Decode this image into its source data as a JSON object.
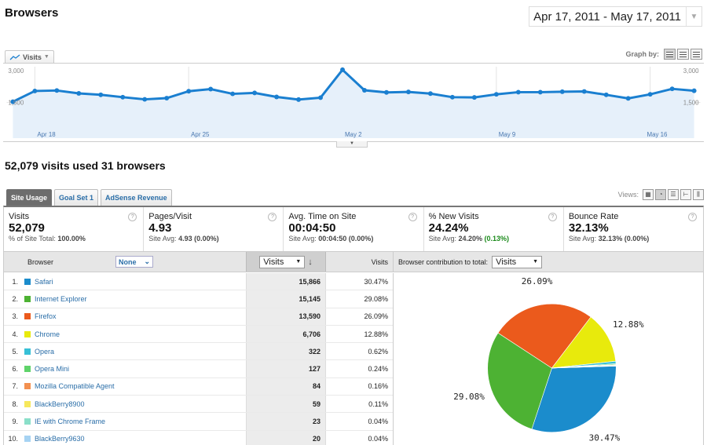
{
  "header": {
    "title": "Browsers",
    "date_range": "Apr 17, 2011 - May 17, 2011"
  },
  "graph": {
    "metric_label": "Visits",
    "graph_by_label": "Graph by:",
    "y_ticks": [
      "3,000",
      "1,500"
    ],
    "x_labels": [
      "Apr 18",
      "Apr 25",
      "May 2",
      "May 9",
      "May 16"
    ],
    "accent": "#1a7fd0"
  },
  "summary": {
    "text": "52,079 visits used 31 browsers"
  },
  "tabs": [
    {
      "label": "Site Usage",
      "active": true
    },
    {
      "label": "Goal Set 1",
      "active": false
    },
    {
      "label": "AdSense Revenue",
      "active": false
    }
  ],
  "views_label": "Views:",
  "scorecards": [
    {
      "label": "Visits",
      "value": "52,079",
      "sub_prefix": "% of Site Total: ",
      "sub_value": "100.00%",
      "sub_delta": ""
    },
    {
      "label": "Pages/Visit",
      "value": "4.93",
      "sub_prefix": "Site Avg: ",
      "sub_value": "4.93",
      "sub_delta": " (0.00%)"
    },
    {
      "label": "Avg. Time on Site",
      "value": "00:04:50",
      "sub_prefix": "Site Avg: ",
      "sub_value": "00:04:50",
      "sub_delta": " (0.00%)"
    },
    {
      "label": "% New Visits",
      "value": "24.24%",
      "sub_prefix": "Site Avg: ",
      "sub_value": "24.20%",
      "sub_delta": " (0.13%)"
    },
    {
      "label": "Bounce Rate",
      "value": "32.13%",
      "sub_prefix": "Site Avg: ",
      "sub_value": "32.13%",
      "sub_delta": " (0.00%)"
    }
  ],
  "table": {
    "col_browser": "Browser",
    "segment_value": "None",
    "sort_metric": "Visits",
    "col_visits": "Visits",
    "contrib_label": "Browser contribution to total:",
    "contrib_metric": "Visits",
    "rows": [
      {
        "num": "1.",
        "browser": "Safari",
        "visits": "15,866",
        "pct": "30.47%",
        "color": "#1b8ccc"
      },
      {
        "num": "2.",
        "browser": "Internet Explorer",
        "visits": "15,145",
        "pct": "29.08%",
        "color": "#4db233"
      },
      {
        "num": "3.",
        "browser": "Firefox",
        "visits": "13,590",
        "pct": "26.09%",
        "color": "#eb5a1c"
      },
      {
        "num": "4.",
        "browser": "Chrome",
        "visits": "6,706",
        "pct": "12.88%",
        "color": "#e8ea0c"
      },
      {
        "num": "5.",
        "browser": "Opera",
        "visits": "322",
        "pct": "0.62%",
        "color": "#37c0d6"
      },
      {
        "num": "6.",
        "browser": "Opera Mini",
        "visits": "127",
        "pct": "0.24%",
        "color": "#5fd36a"
      },
      {
        "num": "7.",
        "browser": "Mozilla Compatible Agent",
        "visits": "84",
        "pct": "0.16%",
        "color": "#f39050"
      },
      {
        "num": "8.",
        "browser": "BlackBerry8900",
        "visits": "59",
        "pct": "0.11%",
        "color": "#f6e85c"
      },
      {
        "num": "9.",
        "browser": "IE with Chrome Frame",
        "visits": "23",
        "pct": "0.04%",
        "color": "#8adfc9"
      },
      {
        "num": "10.",
        "browser": "BlackBerry9630",
        "visits": "20",
        "pct": "0.04%",
        "color": "#a6d3f3"
      }
    ]
  },
  "chart_data": [
    {
      "type": "area",
      "series": [
        {
          "name": "Visits",
          "values": [
            1530,
            1980,
            2000,
            1880,
            1820,
            1720,
            1630,
            1680,
            1970,
            2060,
            1860,
            1900,
            1730,
            1620,
            1700,
            2870,
            2010,
            1920,
            1940,
            1870,
            1720,
            1710,
            1840,
            1930,
            1930,
            1950,
            1960,
            1820,
            1670,
            1840,
            2070,
            1990
          ]
        }
      ],
      "x": [
        "Apr 17",
        "Apr 18",
        "Apr 19",
        "Apr 20",
        "Apr 21",
        "Apr 22",
        "Apr 23",
        "Apr 24",
        "Apr 25",
        "Apr 26",
        "Apr 27",
        "Apr 28",
        "Apr 29",
        "Apr 30",
        "May 1",
        "May 2",
        "May 3",
        "May 4",
        "May 5",
        "May 6",
        "May 7",
        "May 8",
        "May 9",
        "May 10",
        "May 11",
        "May 12",
        "May 13",
        "May 14",
        "May 15",
        "May 16",
        "May 17",
        "May 18"
      ],
      "ylim": [
        0,
        3000
      ],
      "grid": true
    },
    {
      "type": "pie",
      "categories": [
        "Safari",
        "Internet Explorer",
        "Firefox",
        "Chrome",
        "Opera",
        "Opera Mini",
        "Mozilla Compatible Agent",
        "BlackBerry8900",
        "IE with Chrome Frame",
        "BlackBerry9630"
      ],
      "values": [
        30.47,
        29.08,
        26.09,
        12.88,
        0.62,
        0.24,
        0.16,
        0.11,
        0.04,
        0.04
      ],
      "labels_shown": [
        "30.47%",
        "29.08%",
        "26.09%",
        "12.88%"
      ]
    }
  ]
}
